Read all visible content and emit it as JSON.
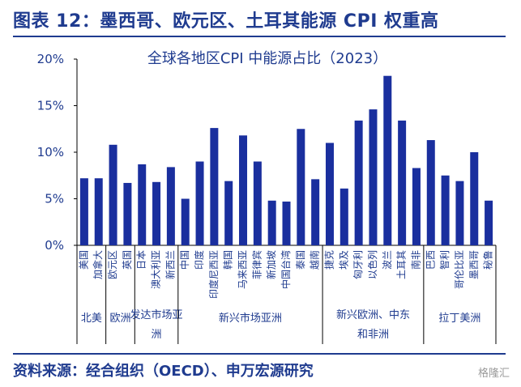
{
  "header": {
    "title": "图表 12：墨西哥、欧元区、土耳其能源 CPI 权重高"
  },
  "footer": {
    "source": "资料来源：经合组织（OECD）、申万宏源研究",
    "watermark": "格隆汇"
  },
  "colors": {
    "bar": "#1a2f9e",
    "header": "#1f3b8f",
    "axis": "#000000"
  },
  "chart_data": {
    "type": "bar",
    "title": "全球各地区CPI 中能源占比（2023）",
    "categories": [
      "美国",
      "加拿大",
      "欧元区",
      "英国",
      "日本",
      "澳大利亚",
      "新西兰",
      "中国",
      "印度",
      "印度尼西亚",
      "韩国",
      "马来西亚",
      "菲律宾",
      "新加坡",
      "中国台湾",
      "泰国",
      "越南",
      "捷克",
      "埃及",
      "匈牙利",
      "以色列",
      "波兰",
      "土耳其",
      "南非",
      "巴西",
      "智利",
      "哥伦比亚",
      "墨西哥",
      "秘鲁"
    ],
    "values": [
      7.2,
      7.2,
      10.8,
      6.7,
      8.7,
      6.8,
      8.4,
      5.0,
      9.0,
      12.6,
      6.9,
      11.8,
      9.0,
      4.8,
      4.7,
      12.5,
      7.1,
      11.0,
      6.1,
      13.4,
      14.6,
      18.2,
      13.4,
      8.3,
      11.3,
      7.5,
      6.9,
      10.0,
      4.8
    ],
    "ylim": [
      0,
      20
    ],
    "yticks": [
      "0%",
      "5%",
      "10%",
      "15%",
      "20%"
    ],
    "groups": [
      {
        "label": "北美",
        "start": 0,
        "end": 1
      },
      {
        "label": "欧洲",
        "start": 2,
        "end": 3
      },
      {
        "label": "发达市场亚洲",
        "start": 4,
        "end": 6
      },
      {
        "label": "新兴市场亚洲",
        "start": 7,
        "end": 16
      },
      {
        "label": "新兴欧洲、中东和非洲",
        "start": 17,
        "end": 23
      },
      {
        "label": "拉丁美洲",
        "start": 24,
        "end": 28
      }
    ]
  }
}
